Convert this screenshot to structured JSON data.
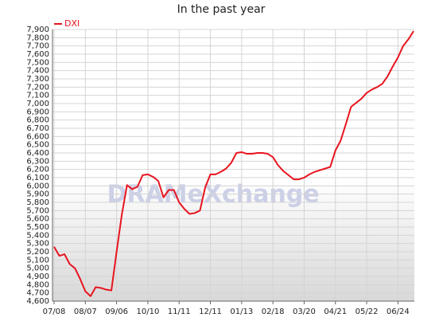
{
  "chart_data": {
    "type": "line",
    "title": "In the past year",
    "watermark": "DRAMeXchange",
    "categories": [
      "07/08",
      null,
      null,
      null,
      null,
      null,
      "08/07",
      null,
      null,
      null,
      null,
      null,
      "09/06",
      null,
      null,
      null,
      null,
      null,
      "10/10",
      null,
      null,
      null,
      null,
      null,
      "11/11",
      null,
      null,
      null,
      null,
      null,
      "12/11",
      null,
      null,
      null,
      null,
      null,
      "01/13",
      null,
      null,
      null,
      null,
      null,
      "02/18",
      null,
      null,
      null,
      null,
      null,
      "03/20",
      null,
      null,
      null,
      null,
      null,
      "04/21",
      null,
      null,
      null,
      null,
      null,
      "05/22",
      null,
      null,
      null,
      null,
      null,
      "06/24",
      null,
      null,
      null
    ],
    "series": [
      {
        "name": "DXI",
        "color": "#e8141e",
        "values": [
          5260,
          5150,
          5170,
          5050,
          5000,
          4870,
          4720,
          4660,
          4770,
          4760,
          4740,
          4730,
          5200,
          5650,
          6010,
          5960,
          5990,
          6130,
          6140,
          6110,
          6060,
          5860,
          5950,
          5950,
          5800,
          5720,
          5660,
          5670,
          5700,
          5980,
          6140,
          6140,
          6170,
          6210,
          6280,
          6400,
          6410,
          6390,
          6390,
          6400,
          6400,
          6390,
          6350,
          6250,
          6180,
          6130,
          6080,
          6080,
          6100,
          6140,
          6170,
          6190,
          6210,
          6230,
          6430,
          6550,
          6750,
          6960,
          7010,
          7060,
          7130,
          7170,
          7200,
          7240,
          7330,
          7450,
          7560,
          7700,
          7780,
          7880
        ]
      }
    ],
    "ylim": [
      4600,
      7900
    ],
    "yticks": [
      {
        "value": 4600,
        "label": "4,600"
      },
      {
        "value": 4700,
        "label": "4,700"
      },
      {
        "value": 4800,
        "label": "4,800"
      },
      {
        "value": 4900,
        "label": "4,900"
      },
      {
        "value": 5000,
        "label": "5,000"
      },
      {
        "value": 5100,
        "label": "5,100"
      },
      {
        "value": 5200,
        "label": "5,200"
      },
      {
        "value": 5300,
        "label": "5,300"
      },
      {
        "value": 5400,
        "label": "5,400"
      },
      {
        "value": 5500,
        "label": "5,500"
      },
      {
        "value": 5600,
        "label": "5,600"
      },
      {
        "value": 5700,
        "label": "5,700"
      },
      {
        "value": 5800,
        "label": "5,800"
      },
      {
        "value": 5900,
        "label": "5,900"
      },
      {
        "value": 6000,
        "label": "6,000"
      },
      {
        "value": 6100,
        "label": "6,100"
      },
      {
        "value": 6200,
        "label": "6,200"
      },
      {
        "value": 6300,
        "label": "6,300"
      },
      {
        "value": 6400,
        "label": "6,400"
      },
      {
        "value": 6500,
        "label": "6,500"
      },
      {
        "value": 6600,
        "label": "6,600"
      },
      {
        "value": 6700,
        "label": "6,700"
      },
      {
        "value": 6800,
        "label": "6,800"
      },
      {
        "value": 6900,
        "label": "6,900"
      },
      {
        "value": 7000,
        "label": "7,000"
      },
      {
        "value": 7100,
        "label": "7,100"
      },
      {
        "value": 7200,
        "label": "7,200"
      },
      {
        "value": 7300,
        "label": "7,300"
      },
      {
        "value": 7400,
        "label": "7,400"
      },
      {
        "value": 7500,
        "label": "7,500"
      },
      {
        "value": 7600,
        "label": "7,600"
      },
      {
        "value": 7700,
        "label": "7,700"
      },
      {
        "value": 7800,
        "label": "7,800"
      },
      {
        "value": 7900,
        "label": "7,900"
      }
    ],
    "grid": true,
    "legend": "top-left"
  }
}
